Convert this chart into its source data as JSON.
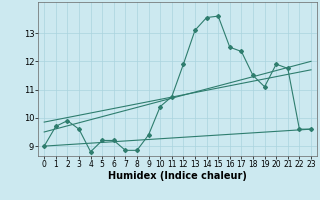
{
  "xlabel": "Humidex (Indice chaleur)",
  "bg_color": "#cce9f0",
  "grid_color": "#aad4de",
  "line_color": "#2e7d6e",
  "xlim": [
    -0.5,
    23.5
  ],
  "ylim": [
    8.65,
    14.1
  ],
  "xticks": [
    0,
    1,
    2,
    3,
    4,
    5,
    6,
    7,
    8,
    9,
    10,
    11,
    12,
    13,
    14,
    15,
    16,
    17,
    18,
    19,
    20,
    21,
    22,
    23
  ],
  "yticks": [
    9,
    10,
    11,
    12,
    13
  ],
  "series1_x": [
    0,
    1,
    2,
    3,
    4,
    5,
    6,
    7,
    8,
    9,
    10,
    11,
    12,
    13,
    14,
    15,
    16,
    17,
    18,
    19,
    20,
    21,
    22,
    23
  ],
  "series1_y": [
    9.0,
    9.7,
    9.9,
    9.6,
    8.8,
    9.2,
    9.2,
    8.85,
    8.85,
    9.4,
    10.4,
    10.75,
    11.9,
    13.1,
    13.55,
    13.6,
    12.5,
    12.35,
    11.5,
    11.1,
    11.9,
    11.75,
    9.6,
    9.6
  ],
  "line2_x": [
    0,
    23
  ],
  "line2_y": [
    9.0,
    9.6
  ],
  "line3_x": [
    0,
    23
  ],
  "line3_y": [
    9.5,
    12.0
  ],
  "line4_x": [
    0,
    23
  ],
  "line4_y": [
    9.85,
    11.7
  ]
}
